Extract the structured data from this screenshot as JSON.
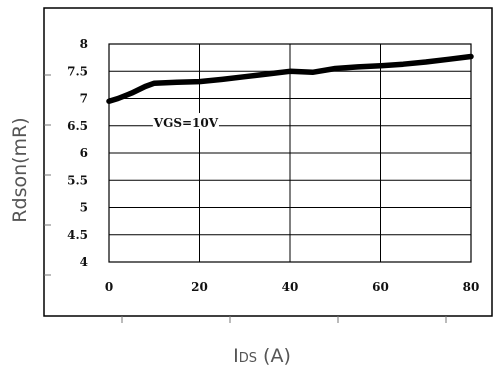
{
  "chart_data": {
    "type": "line",
    "title": "",
    "xlabel": "IDS (A)",
    "xlabel_parts": {
      "main": "I",
      "sub": "DS",
      "unit": " (A)"
    },
    "ylabel": "Rdson(mR)",
    "xlim": [
      0,
      80
    ],
    "ylim": [
      4,
      8
    ],
    "x_ticks": [
      "0",
      "20",
      "40",
      "60",
      "80"
    ],
    "y_ticks": [
      "4",
      "4.5",
      "5",
      "5.5",
      "6",
      "6.5",
      "7",
      "7.5",
      "8"
    ],
    "grid": true,
    "series": [
      {
        "name": "VGS=10V",
        "x": [
          0,
          2,
          5,
          8,
          10,
          15,
          20,
          25,
          30,
          35,
          40,
          45,
          50,
          55,
          60,
          65,
          70,
          75,
          80
        ],
        "y": [
          6.95,
          7.0,
          7.1,
          7.22,
          7.28,
          7.3,
          7.31,
          7.35,
          7.4,
          7.45,
          7.5,
          7.48,
          7.55,
          7.58,
          7.6,
          7.63,
          7.67,
          7.72,
          7.77
        ]
      }
    ],
    "annotations": [
      {
        "text": "VGS=10V",
        "x": 17,
        "y": 6.55
      }
    ],
    "colors": {
      "line": "#000000",
      "grid": "#000000",
      "frame": "#000000",
      "label": "#555555"
    }
  }
}
